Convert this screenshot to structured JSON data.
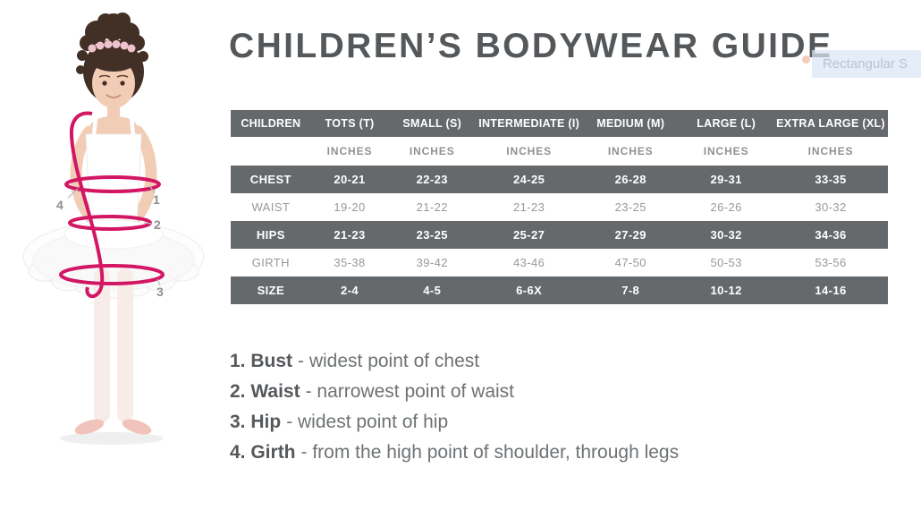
{
  "title": "CHILDREN’S BODYWEAR GUIDE",
  "snip_overlay": {
    "label": "Rectangular S"
  },
  "size_table": {
    "header": [
      "CHILDREN",
      "TOTS (T)",
      "SMALL (S)",
      "INTERMEDIATE (I)",
      "MEDIUM (M)",
      "LARGE (L)",
      "EXTRA LARGE (XL)"
    ],
    "units": [
      "",
      "INCHES",
      "INCHES",
      "INCHES",
      "INCHES",
      "INCHES",
      "INCHES"
    ],
    "rows": [
      {
        "label": "CHEST",
        "values": [
          "20-21",
          "22-23",
          "24-25",
          "26-28",
          "29-31",
          "33-35"
        ],
        "shaded": true
      },
      {
        "label": "WAIST",
        "values": [
          "19-20",
          "21-22",
          "21-23",
          "23-25",
          "26-26",
          "30-32"
        ],
        "shaded": false
      },
      {
        "label": "HIPS",
        "values": [
          "21-23",
          "23-25",
          "25-27",
          "27-29",
          "30-32",
          "34-36"
        ],
        "shaded": true
      },
      {
        "label": "GIRTH",
        "values": [
          "35-38",
          "39-42",
          "43-46",
          "47-50",
          "50-53",
          "53-56"
        ],
        "shaded": false
      },
      {
        "label": "SIZE",
        "values": [
          "2-4",
          "4-5",
          "6-6X",
          "7-8",
          "10-12",
          "14-16"
        ],
        "shaded": true
      }
    ]
  },
  "notes": [
    {
      "term": "1. Bust",
      "desc": "- widest point of chest"
    },
    {
      "term": "2. Waist",
      "desc": "- narrowest point of waist"
    },
    {
      "term": "3. Hip",
      "desc": "- widest point of hip"
    },
    {
      "term": "4. Girth",
      "desc": "- from the high point of shoulder, through legs"
    }
  ],
  "figure": {
    "description": "Child ballerina in white leotard and tutu with pink measurement bands",
    "labels": [
      "1",
      "2",
      "3",
      "4"
    ]
  },
  "colors": {
    "measure_band": "#d31663",
    "table_dark_row": "#66696c",
    "title_text": "#55585b",
    "light_row_text": "#96999c"
  }
}
